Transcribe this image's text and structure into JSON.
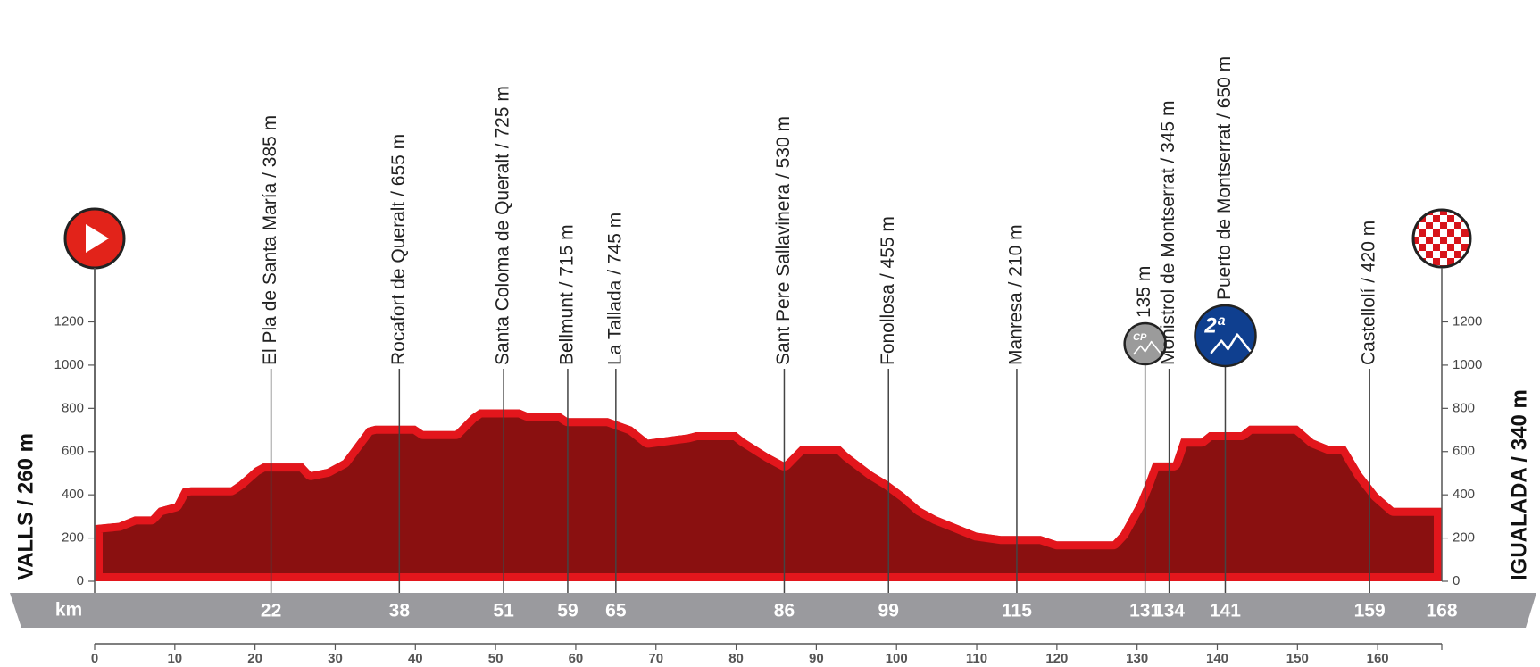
{
  "chart_data": {
    "type": "area",
    "x": [
      0,
      3,
      5,
      7,
      8,
      10,
      11,
      12,
      17,
      18,
      20,
      21,
      26,
      27,
      29,
      31,
      34,
      35,
      40,
      41,
      45,
      47,
      48,
      53,
      54,
      58,
      59,
      64,
      67,
      69,
      74,
      75,
      80,
      81,
      84,
      86,
      88,
      93,
      94,
      97,
      99,
      101,
      103,
      105,
      107,
      110,
      113,
      118,
      120,
      127,
      128,
      130,
      131,
      132,
      134.5,
      135.5,
      138,
      139,
      143,
      144,
      150,
      152,
      154,
      156,
      158,
      160,
      162,
      163,
      168
    ],
    "values": [
      260,
      270,
      300,
      300,
      340,
      360,
      430,
      435,
      435,
      460,
      525,
      545,
      545,
      505,
      520,
      560,
      710,
      720,
      720,
      695,
      695,
      770,
      795,
      795,
      780,
      780,
      755,
      755,
      715,
      655,
      680,
      690,
      690,
      660,
      590,
      550,
      625,
      625,
      590,
      505,
      460,
      405,
      340,
      300,
      270,
      225,
      210,
      210,
      185,
      185,
      225,
      360,
      450,
      550,
      550,
      660,
      660,
      690,
      690,
      720,
      720,
      655,
      625,
      625,
      500,
      405,
      340,
      340,
      340
    ],
    "color": "#8a1010",
    "edge_color": "#e3161c",
    "xlim": [
      0,
      168
    ],
    "xticks": [
      0,
      10,
      20,
      30,
      40,
      50,
      60,
      70,
      80,
      90,
      100,
      110,
      120,
      130,
      140,
      150,
      160
    ],
    "ylim": [
      0,
      1200
    ],
    "yticks": [
      0,
      200,
      400,
      600,
      800,
      1000,
      1200
    ],
    "start_label": "VALLS / 260 m",
    "finish_label": "IGUALADA / 340 m",
    "distance_label": "km",
    "finish_km": 168,
    "waypoints": [
      {
        "km": 22,
        "label": "El Pla de Santa María / 385 m"
      },
      {
        "km": 38,
        "label": "Rocafort de Queralt / 655 m"
      },
      {
        "km": 51,
        "label": "Santa Coloma de Queralt / 725 m"
      },
      {
        "km": 59,
        "label": "Bellmunt / 715 m"
      },
      {
        "km": 65,
        "label": "La Tallada / 745 m"
      },
      {
        "km": 86,
        "label": "Sant Pere Sallavinera / 530 m"
      },
      {
        "km": 99,
        "label": "Fonollosa / 455 m"
      },
      {
        "km": 115,
        "label": "Manresa / 210 m"
      },
      {
        "km": 131,
        "label": "135 m",
        "badge": "CP",
        "badge_color": "#9b9b9b"
      },
      {
        "km": 134,
        "label": "Monistrol de Montserrat / 345 m"
      },
      {
        "km": 141,
        "label": "Puerto de Montserrat / 650 m",
        "badge": "2ª",
        "badge_color": "#0f3f8f"
      },
      {
        "km": 159,
        "label": "Castellolí / 420 m"
      }
    ]
  }
}
